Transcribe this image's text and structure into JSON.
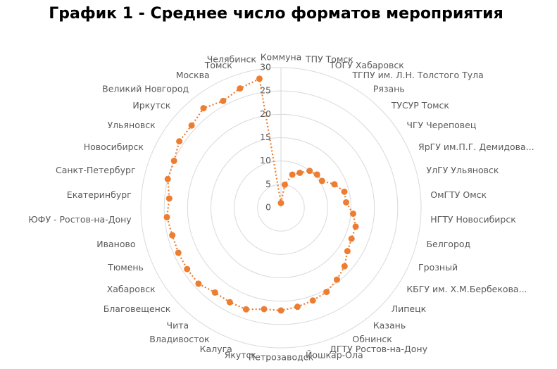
{
  "chart_data": {
    "type": "radar",
    "title": "График 1 - Среднее число форматов мероприятия",
    "categories": [
      "Коммуна",
      "ТПУ Томск",
      "ТОГУ Хабаровск",
      "ТГПУ им. Л.Н. Толстого Тула",
      "Рязань",
      "ТУСУР Томск",
      "ЧГУ Череповец",
      "ЯрГУ им.П.Г. Демидова...",
      "УлГУ Ульяновск",
      "ОмГТУ Омск",
      "НГТУ Новосибирск",
      "Белгород",
      "Грозный",
      "КБГУ им. Х.М.Бербекова...",
      "Липецк",
      "Казань",
      "Обнинск",
      "ДГТУ Ростов-на-Дону",
      "Йошкар-Ола",
      "Петрозаводск",
      "Якутск",
      "Калуга",
      "Владивосток",
      "Чита",
      "Благовещенск",
      "Хабаровск",
      "Тюмень",
      "Иваново",
      "ЮФУ - Ростов-на-Дону",
      "Екатеринбург",
      "Санкт-Петербург",
      "Новосибирск",
      "Ульяновск",
      "Иркутск",
      "Великий Новгород",
      "Москва",
      "Томск",
      "Челябинск"
    ],
    "values": [
      1,
      5,
      7.5,
      8.5,
      10,
      10.5,
      10.5,
      12.5,
      14,
      14,
      15.5,
      16.5,
      16.5,
      17,
      18.5,
      19.5,
      20.5,
      21,
      21.5,
      22,
      22,
      23,
      23,
      23,
      24,
      24,
      24,
      24,
      24.5,
      24,
      25,
      25,
      26,
      26,
      27,
      26,
      27,
      28
    ],
    "color": "#ed7d31",
    "ylim": [
      0,
      30
    ],
    "yticks": [
      0,
      5,
      10,
      15,
      20,
      25,
      30
    ],
    "grid": true
  }
}
